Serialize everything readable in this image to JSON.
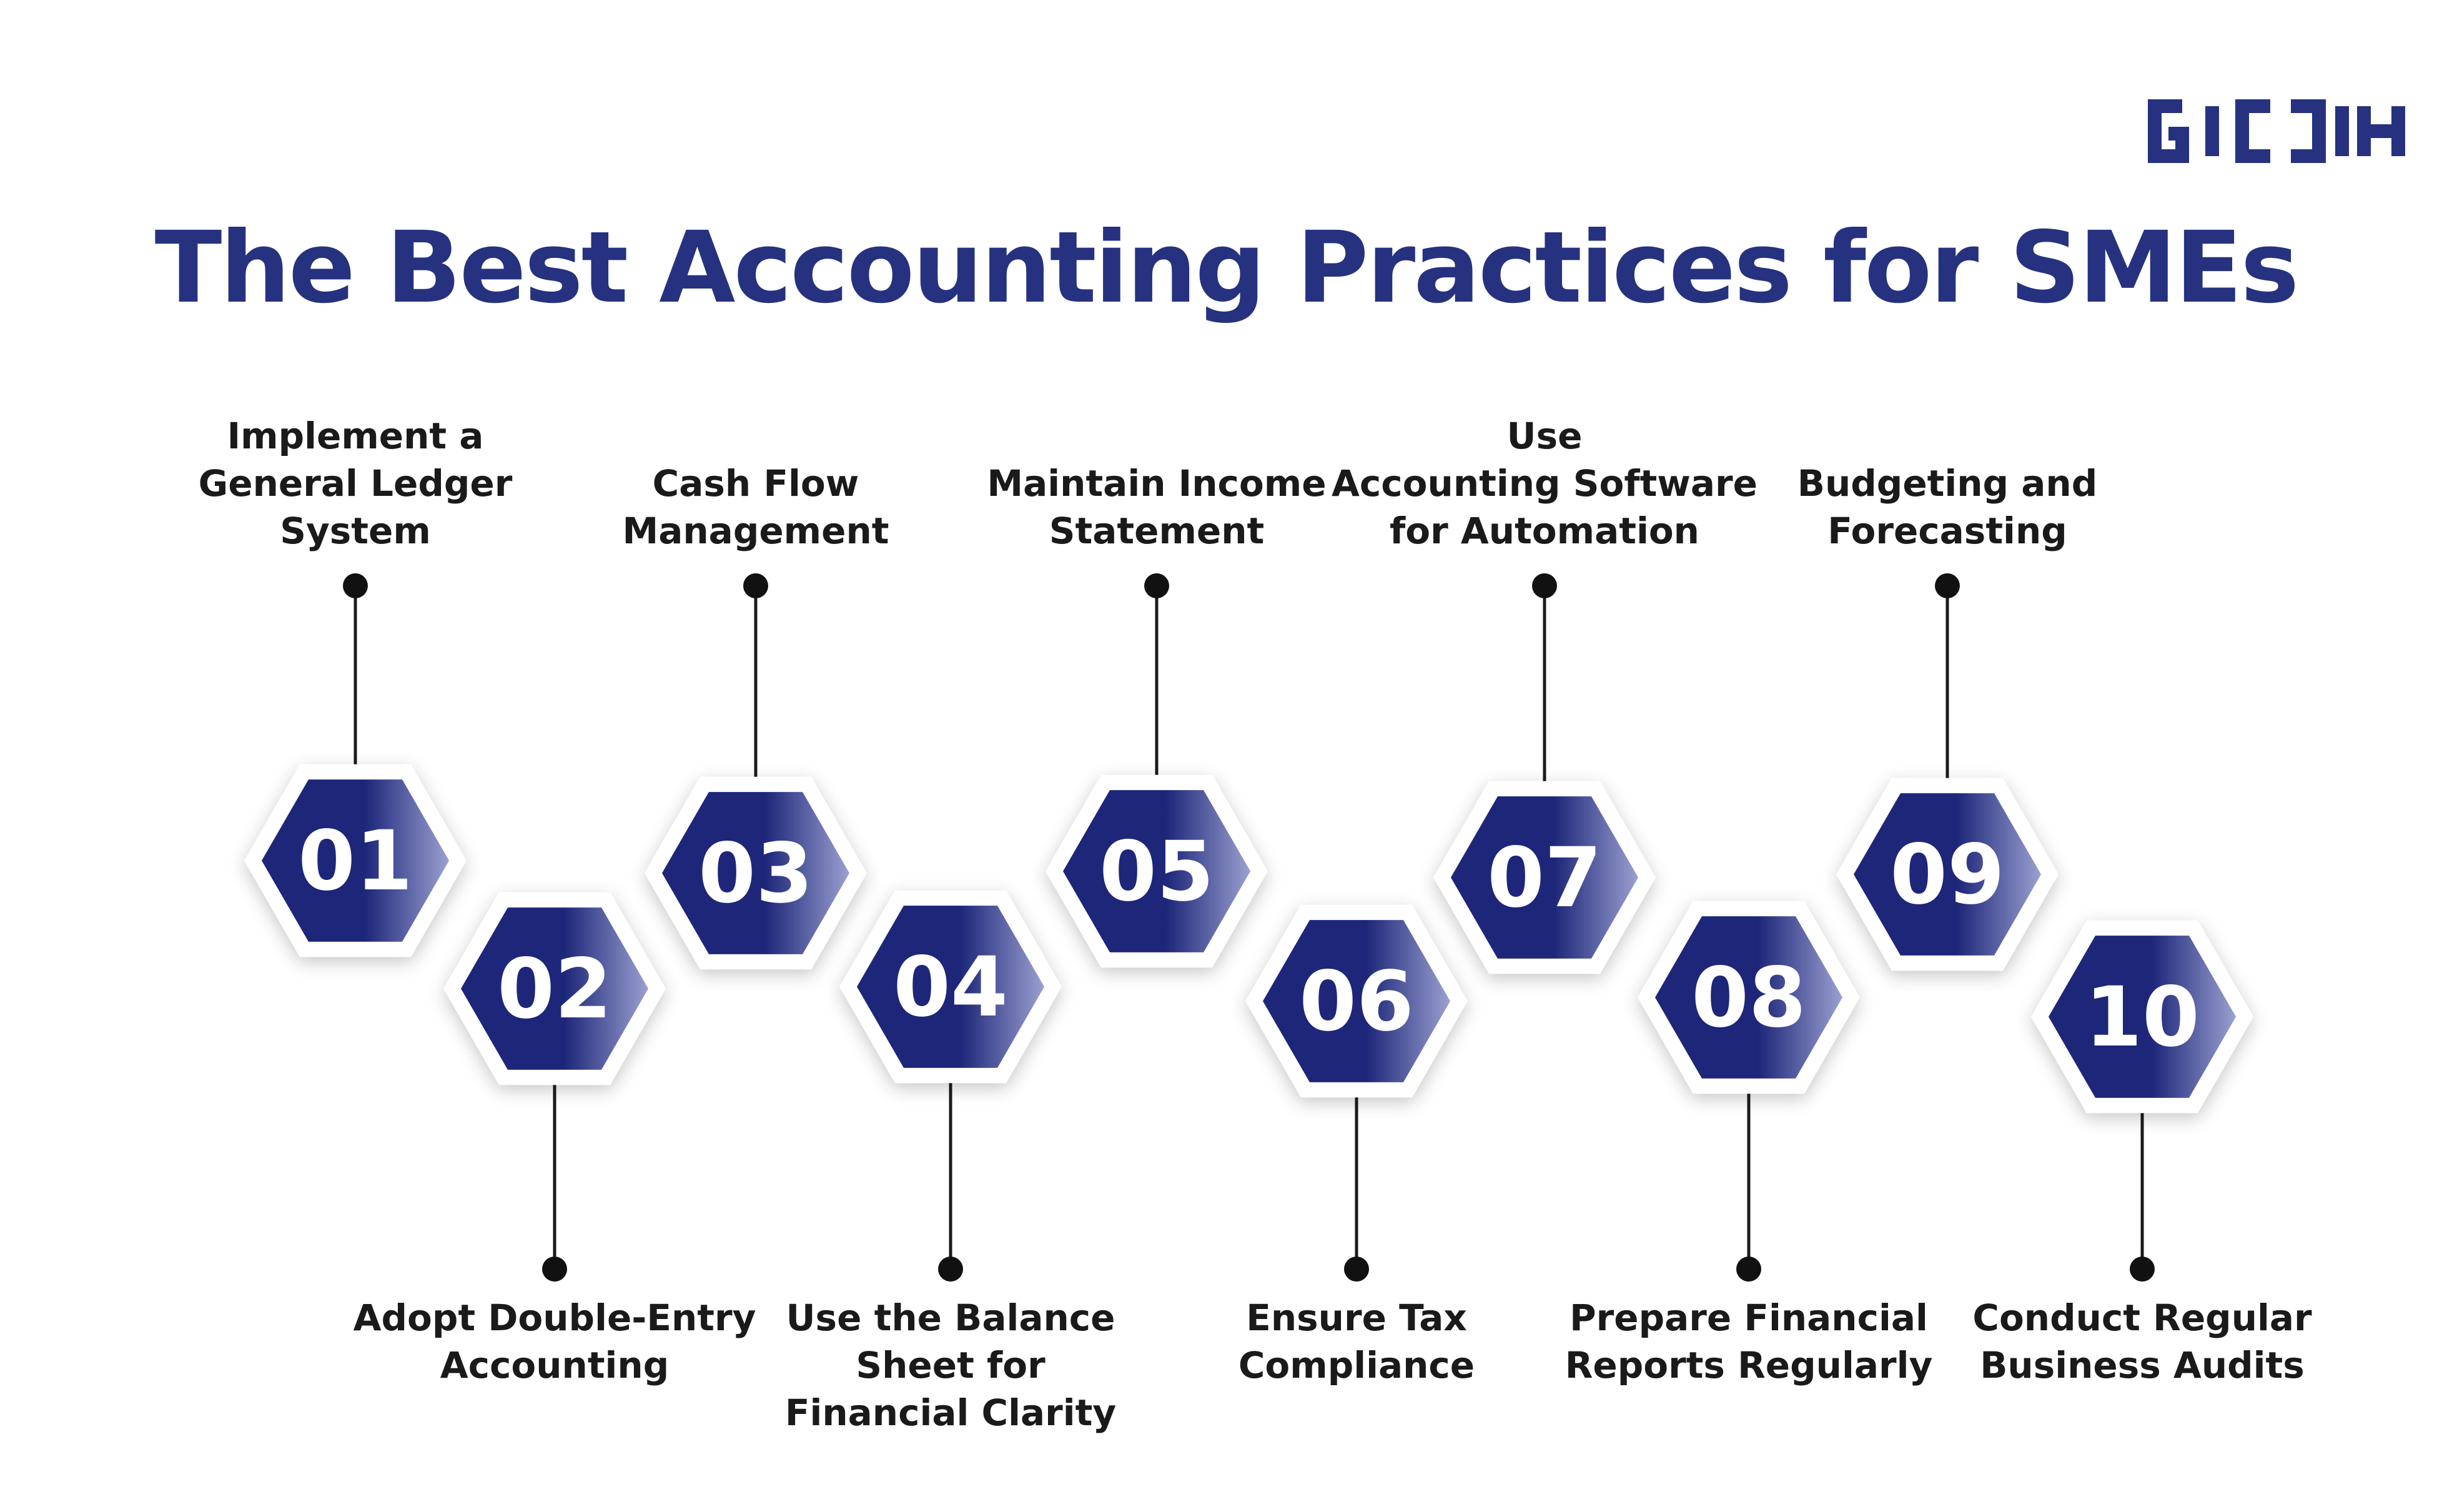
{
  "brand": {
    "logo_text": "GIDDH",
    "color": "#26327f"
  },
  "title": "The Best Accounting Practices for SMEs",
  "colors": {
    "hex_dark": "#1d2679",
    "hex_light": "#9aa0d0",
    "hex_border": "#ffffff",
    "connector": "#1b1b1b",
    "label_text": "#1a1a1a"
  },
  "steps": [
    {
      "number": "01",
      "label": "Implement a\nGeneral Ledger System",
      "side": "top"
    },
    {
      "number": "02",
      "label": "Adopt Double-Entry\nAccounting",
      "side": "bottom"
    },
    {
      "number": "03",
      "label": "Cash Flow\nManagement",
      "side": "top"
    },
    {
      "number": "04",
      "label": "Use the Balance\nSheet for\nFinancial Clarity",
      "side": "bottom"
    },
    {
      "number": "05",
      "label": "Maintain Income\nStatement",
      "side": "top"
    },
    {
      "number": "06",
      "label": "Ensure Tax\nCompliance",
      "side": "bottom"
    },
    {
      "number": "07",
      "label": "Use\nAccounting Software\nfor Automation",
      "side": "top"
    },
    {
      "number": "08",
      "label": "Prepare Financial\nReports Regularly",
      "side": "bottom"
    },
    {
      "number": "09",
      "label": "Budgeting and\nForecasting",
      "side": "top"
    },
    {
      "number": "10",
      "label": "Conduct Regular\nBusiness Audits",
      "side": "bottom"
    }
  ]
}
